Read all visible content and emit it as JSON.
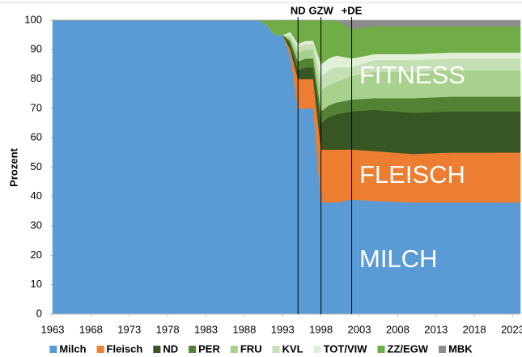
{
  "chart_data": {
    "type": "stacked-area",
    "y_label": "Prozent",
    "x": [
      1963,
      1990,
      1991,
      1992,
      1993,
      1994,
      1995,
      1996,
      1997,
      1998,
      1999,
      2000,
      2002,
      2005,
      2010,
      2015,
      2020,
      2024
    ],
    "xlim": [
      1963,
      2024
    ],
    "xticks": [
      1963,
      1968,
      1973,
      1978,
      1983,
      1988,
      1993,
      1998,
      2003,
      2008,
      2013,
      2018,
      2023
    ],
    "ylim": [
      0,
      100
    ],
    "yticks": [
      0,
      10,
      20,
      30,
      40,
      50,
      60,
      70,
      80,
      90,
      100
    ],
    "series": [
      {
        "name": "Milch",
        "color": "#5b9bd5",
        "values": [
          100,
          100,
          98,
          95,
          95,
          88,
          70,
          70,
          70,
          38,
          38,
          38,
          39,
          38.5,
          38,
          38,
          38,
          38
        ]
      },
      {
        "name": "Fleisch",
        "color": "#ed7d31",
        "values": [
          0,
          0,
          0,
          0,
          0,
          2,
          10,
          10,
          10,
          18,
          18,
          18,
          17,
          17,
          16.5,
          17,
          17,
          17
        ]
      },
      {
        "name": "ND",
        "color": "#375623",
        "values": [
          0,
          0,
          0,
          0,
          0,
          2,
          3,
          4,
          4,
          9,
          11,
          12,
          13,
          14,
          14,
          14,
          14,
          14
        ]
      },
      {
        "name": "PER",
        "color": "#548235",
        "values": [
          0,
          0,
          0,
          0,
          0,
          1,
          3,
          3,
          3,
          4,
          4,
          4,
          4,
          4,
          5,
          5,
          5,
          5
        ]
      },
      {
        "name": "FRU",
        "color": "#a9d18e",
        "values": [
          0,
          0,
          0,
          0,
          0,
          1,
          3,
          3,
          3,
          7,
          7,
          7,
          8,
          9,
          9,
          9,
          9,
          9
        ]
      },
      {
        "name": "KVL",
        "color": "#c5e0b4",
        "values": [
          0,
          0,
          0,
          0,
          0,
          1,
          2,
          2,
          2,
          5,
          5,
          5,
          3,
          4,
          4,
          4,
          4,
          4
        ]
      },
      {
        "name": "TOT/VIW",
        "color": "#e2f0d9",
        "values": [
          0,
          0,
          0,
          0,
          0,
          1,
          1,
          1,
          1,
          4,
          4,
          4,
          3,
          2,
          2,
          2,
          2,
          2
        ]
      },
      {
        "name": "ZZ/EGW",
        "color": "#70ad47",
        "values": [
          0,
          0,
          2,
          5,
          5,
          4,
          8,
          7,
          7,
          15,
          13,
          12,
          10,
          9.5,
          9.5,
          9,
          9,
          9
        ]
      },
      {
        "name": "MBK",
        "color": "#8c8c8c",
        "values": [
          0,
          0,
          0,
          0,
          0,
          0,
          0,
          0,
          0,
          0,
          0,
          0,
          3,
          2,
          2,
          2,
          2,
          2
        ]
      }
    ],
    "markers": [
      {
        "x": 1995,
        "label": "ND"
      },
      {
        "x": 1998,
        "label": "GZW"
      },
      {
        "x": 2002,
        "label": "+DE"
      }
    ],
    "annotations": [
      "FITNESS",
      "FLEISCH",
      "MILCH"
    ]
  }
}
